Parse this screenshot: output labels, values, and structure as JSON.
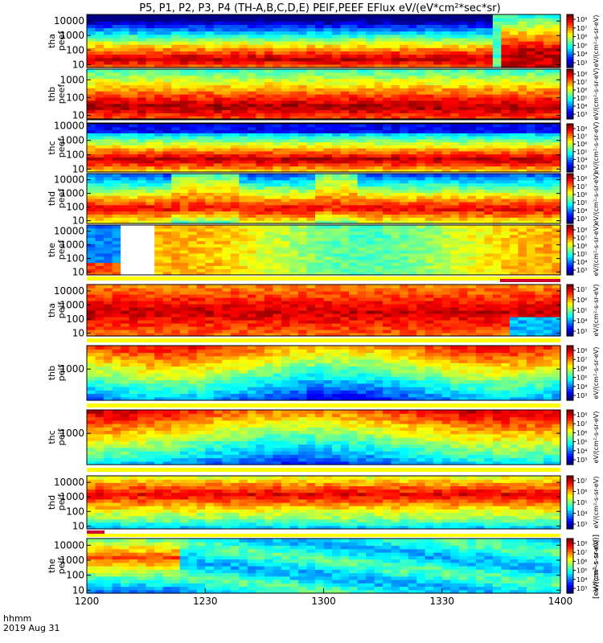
{
  "title": "P5, P1, P2, P3, P4 (TH-A,B,C,D,E) PEIF,PEEF EFlux eV/(eV*cm²*sec*sr)",
  "footer": {
    "time_label": "hhmm",
    "date_label": "2019 Aug 31"
  },
  "colors": {
    "frame": "#000000",
    "gap": "#ffffff",
    "marker_red": "#cc0033",
    "marker_yellow": "#ffff00"
  },
  "chart_data": {
    "type": "heatmap",
    "x_ticks": [
      "1200",
      "1230",
      "1300",
      "1330",
      "1400"
    ],
    "x_range_hhmm": [
      "1200",
      "1400"
    ],
    "colorbar_label": "[eV/(cm²-s-sr-eV)]",
    "panels": [
      {
        "name": "tha peef",
        "ylabel": [
          "tha",
          "peef"
        ],
        "yticks": [
          "10000",
          "1000",
          "100",
          "10"
        ],
        "cbar_ticks": [
          "10⁸",
          "10⁷",
          "10⁶",
          "10⁵",
          "10⁴",
          "10³"
        ],
        "cbar_title": "eV/(cm²-s-sr-eV)"
      },
      {
        "name": "thb peef",
        "ylabel": [
          "thb",
          "peef"
        ],
        "yticks": [
          "1000",
          "100",
          "10"
        ],
        "cbar_ticks": [
          "10⁸",
          "10⁷",
          "10⁶",
          "10⁵",
          "10⁴",
          "10³"
        ],
        "cbar_title": "eV/(cm²-s-sr-eV)"
      },
      {
        "name": "thc peef",
        "ylabel": [
          "thc",
          "peef"
        ],
        "yticks": [
          "10000",
          "1000",
          "100",
          "10"
        ],
        "cbar_ticks": [
          "10⁸",
          "10⁷",
          "10⁶",
          "10⁵",
          "10⁴",
          "10³"
        ],
        "cbar_title": "eV/(cm²-s-sr-eV)"
      },
      {
        "name": "thd peef",
        "ylabel": [
          "thd",
          "peef"
        ],
        "yticks": [
          "10000",
          "1000",
          "100",
          "10"
        ],
        "cbar_ticks": [
          "10⁸",
          "10⁷",
          "10⁶",
          "10⁵",
          "10⁴",
          "10³"
        ],
        "cbar_title": "eV/(cm²-s-sr-eV)"
      },
      {
        "name": "the peef",
        "ylabel": [
          "the",
          "peef"
        ],
        "yticks": [
          "10000",
          "1000",
          "100",
          "10"
        ],
        "cbar_ticks": [
          "10⁸",
          "10⁷",
          "10⁶",
          "10⁵",
          "10⁴",
          "10³"
        ],
        "cbar_title": "eV/(cm²-s-sr-eV)"
      },
      {
        "name": "tha peif",
        "ylabel": [
          "tha",
          "peif"
        ],
        "yticks": [
          "10000",
          "1000",
          "100",
          "10"
        ],
        "cbar_ticks": [
          "10⁷",
          "10⁶",
          "10⁵",
          "10⁴",
          "10³"
        ],
        "cbar_title": "eV/(cm²-s-sr-eV)"
      },
      {
        "name": "thb peif",
        "ylabel": [
          "thb",
          "peif"
        ],
        "yticks": [
          "1000"
        ],
        "cbar_ticks": [
          "10⁸",
          "10⁷",
          "10⁶",
          "10⁵",
          "10⁴",
          "10³"
        ],
        "cbar_title": "eV/(cm²-s-sr-eV)"
      },
      {
        "name": "thc peif",
        "ylabel": [
          "thc",
          "peif"
        ],
        "yticks": [
          "1000"
        ],
        "cbar_ticks": [
          "10⁸",
          "10⁷",
          "10⁶",
          "10⁵",
          "10⁴",
          "10³"
        ],
        "cbar_title": "eV/(cm²-s-sr-eV)"
      },
      {
        "name": "thd peif",
        "ylabel": [
          "thd",
          "peif"
        ],
        "yticks": [
          "10000",
          "1000",
          "100",
          "10"
        ],
        "cbar_ticks": [
          "10⁷",
          "10⁶",
          "10⁵",
          "10⁴",
          "10³"
        ],
        "cbar_title": "eV/(cm²-s-sr-eV)"
      },
      {
        "name": "the peif",
        "ylabel": [
          "the",
          "peif"
        ],
        "yticks": [
          "10000",
          "1000",
          "100",
          "10"
        ],
        "cbar_ticks": [
          "10⁸",
          "10⁷",
          "10⁶",
          "10⁵",
          "10⁴",
          "10³"
        ],
        "cbar_title": "eV/(cm²-s-sr-eV)"
      }
    ]
  }
}
